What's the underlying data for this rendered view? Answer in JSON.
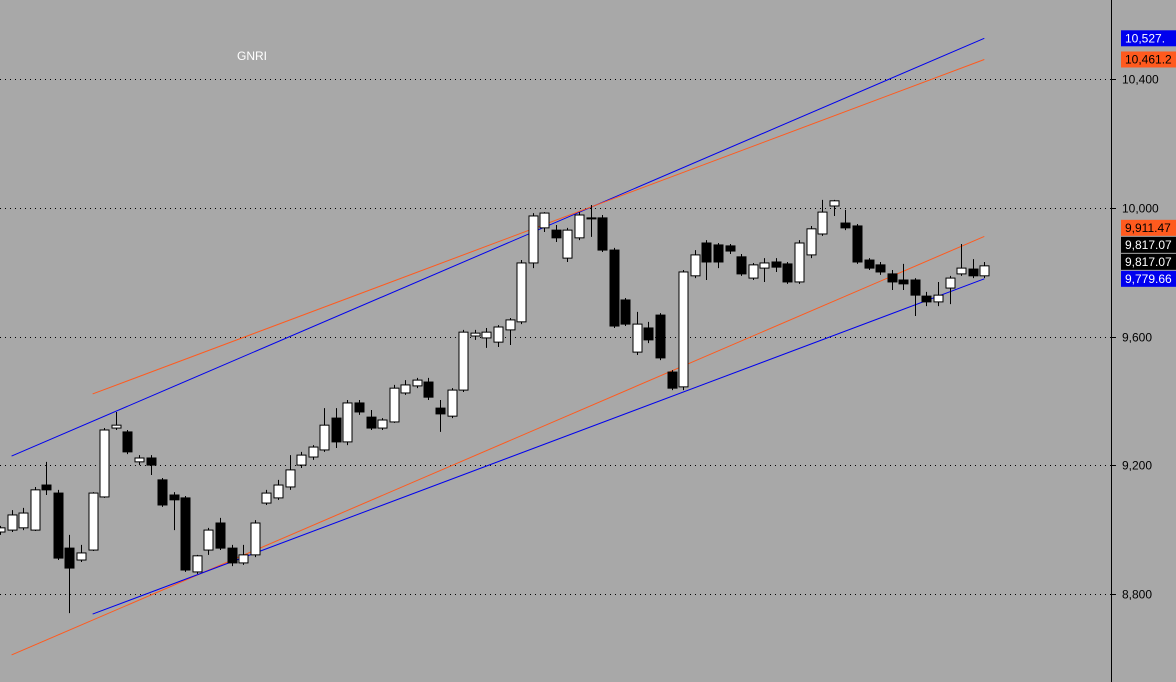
{
  "chart_data": {
    "type": "candlestick",
    "title": "GNRI",
    "open": [
      8993,
      8999,
      9006,
      8999,
      9139,
      9114,
      8943,
      8906,
      8937,
      9102,
      9316,
      9304,
      9211,
      9223,
      9155,
      9108,
      9099,
      8869,
      8937,
      9021,
      8943,
      8897,
      8922,
      9083,
      9099,
      9133,
      9201,
      9226,
      9248,
      9347,
      9273,
      9394,
      9350,
      9316,
      9335,
      9425,
      9447,
      9459,
      9378,
      9353,
      9434,
      9602,
      9596,
      9583,
      9621,
      9646,
      9829,
      9938,
      9931,
      9844,
      9907,
      9969,
      9969,
      9869,
      9714,
      9552,
      9627,
      9667,
      9490,
      9444,
      9789,
      9891,
      9885,
      9882,
      9848,
      9782,
      9813,
      9832,
      9826,
      9770,
      9854,
      9919,
      10006,
      9953,
      9944,
      9838,
      9823,
      9795,
      9776,
      9776,
      9726,
      9708,
      9751,
      9795,
      9810,
      9789
    ],
    "high": [
      9012,
      9061,
      9068,
      9133,
      9211,
      9124,
      8984,
      8953,
      9117,
      9316,
      9366,
      9310,
      9232,
      9232,
      9161,
      9117,
      9105,
      8922,
      9006,
      9037,
      8953,
      8953,
      9030,
      9124,
      9155,
      9232,
      9242,
      9263,
      9378,
      9378,
      9403,
      9403,
      9372,
      9347,
      9450,
      9465,
      9472,
      9472,
      9403,
      9440,
      9621,
      9621,
      9627,
      9636,
      9658,
      9838,
      9984,
      9987,
      9947,
      9938,
      9987,
      10009,
      9978,
      9876,
      9720,
      9677,
      9646,
      9673,
      9496,
      9807,
      9869,
      9900,
      9891,
      9888,
      9857,
      9829,
      9844,
      9844,
      9832,
      9900,
      9944,
      10025,
      10025,
      9994,
      9950,
      9844,
      9832,
      9807,
      9826,
      9782,
      9739,
      9770,
      9789,
      9888,
      9841,
      9832
    ],
    "low": [
      8984,
      8993,
      8999,
      8996,
      9108,
      8906,
      8741,
      8900,
      8934,
      9099,
      9310,
      9235,
      9201,
      9170,
      9071,
      8999,
      8869,
      8863,
      8922,
      8937,
      8887,
      8891,
      8915,
      9077,
      9093,
      9124,
      9192,
      9217,
      9242,
      9254,
      9263,
      9357,
      9310,
      9310,
      9332,
      9419,
      9440,
      9403,
      9304,
      9347,
      9428,
      9590,
      9565,
      9568,
      9574,
      9639,
      9813,
      9925,
      9894,
      9832,
      9900,
      9910,
      9863,
      9627,
      9633,
      9543,
      9580,
      9527,
      9434,
      9434,
      9782,
      9776,
      9813,
      9857,
      9789,
      9776,
      9770,
      9801,
      9764,
      9764,
      9844,
      9913,
      9975,
      9931,
      9826,
      9807,
      9792,
      9745,
      9745,
      9664,
      9695,
      9695,
      9701,
      9789,
      9782,
      9782
    ],
    "close": [
      9006,
      9046,
      9052,
      9124,
      9124,
      8912,
      8881,
      8928,
      9114,
      9310,
      9325,
      9242,
      9223,
      9201,
      9077,
      9093,
      8875,
      8919,
      8999,
      8943,
      8897,
      8922,
      9021,
      9114,
      9139,
      9186,
      9232,
      9257,
      9325,
      9273,
      9394,
      9366,
      9316,
      9341,
      9440,
      9450,
      9465,
      9412,
      9360,
      9434,
      9614,
      9611,
      9614,
      9630,
      9652,
      9829,
      9975,
      9984,
      9907,
      9931,
      9978,
      9969,
      9869,
      9633,
      9639,
      9639,
      9590,
      9534,
      9440,
      9801,
      9854,
      9832,
      9832,
      9866,
      9795,
      9823,
      9829,
      9816,
      9770,
      9891,
      9935,
      9987,
      10022,
      9938,
      9832,
      9813,
      9801,
      9770,
      9764,
      9729,
      9708,
      9729,
      9782,
      9813,
      9789,
      9820
    ],
    "up_color": "#ffffff",
    "down_color": "#000000",
    "ylim": [
      8527,
      10646
    ],
    "yticks": [
      {
        "value": 8800,
        "label": "8,800"
      },
      {
        "value": 9200,
        "label": "9,200"
      },
      {
        "value": 9600,
        "label": "9,600"
      },
      {
        "value": 10000,
        "label": "10,000"
      },
      {
        "value": 10400,
        "label": "10,400"
      }
    ],
    "grid": true,
    "trendlines": [
      {
        "color": "#0000ee",
        "x": [
          1,
          85
        ],
        "y": [
          9229,
          10527
        ],
        "label": "10,527."
      },
      {
        "color": "#ff5a1e",
        "x": [
          8,
          85
        ],
        "y": [
          9422,
          10461.2
        ],
        "label": "10,461.2"
      },
      {
        "color": "#ff5a1e",
        "x": [
          1,
          85
        ],
        "y": [
          8611,
          9911.47
        ],
        "label": "9,911.47"
      },
      {
        "color": "#0000ee",
        "x": [
          8,
          85
        ],
        "y": [
          8738,
          9779.66
        ],
        "label": "9,779.66"
      }
    ],
    "price_tags": [
      {
        "value": 9817.07,
        "label": "9,817.07",
        "color": "#000000"
      },
      {
        "value": 9817.07,
        "label": "9,817.07",
        "color": "#000000"
      }
    ]
  }
}
